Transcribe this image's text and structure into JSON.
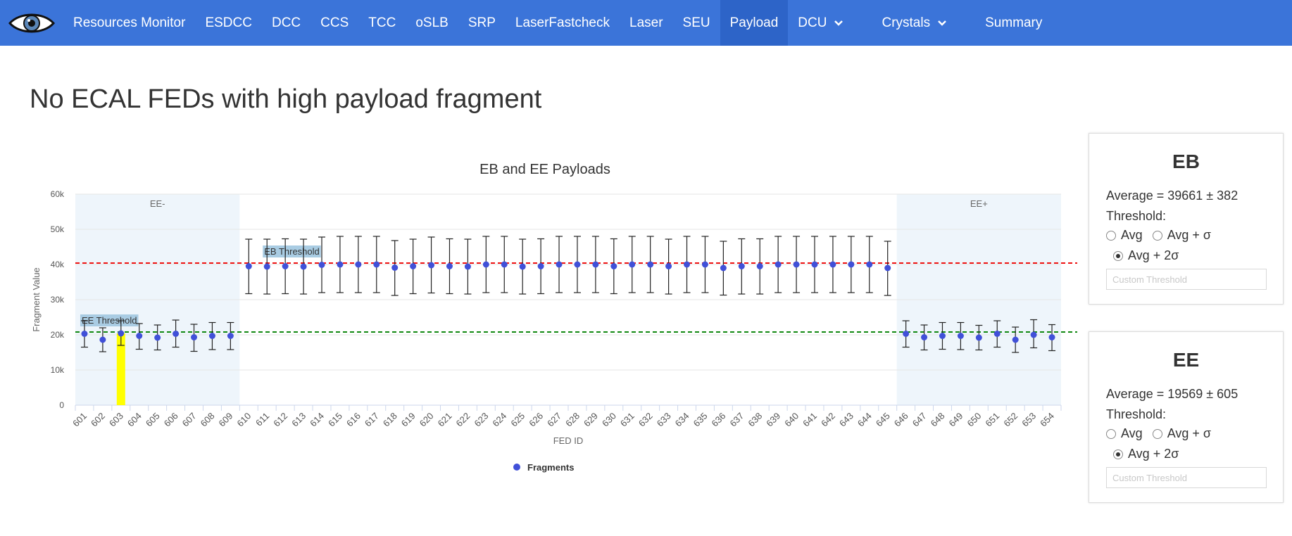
{
  "nav": {
    "items": [
      {
        "label": "Resources Monitor",
        "active": false,
        "dropdown": false
      },
      {
        "label": "ESDCC",
        "active": false,
        "dropdown": false
      },
      {
        "label": "DCC",
        "active": false,
        "dropdown": false
      },
      {
        "label": "CCS",
        "active": false,
        "dropdown": false
      },
      {
        "label": "TCC",
        "active": false,
        "dropdown": false
      },
      {
        "label": "oSLB",
        "active": false,
        "dropdown": false
      },
      {
        "label": "SRP",
        "active": false,
        "dropdown": false
      },
      {
        "label": "LaserFastcheck",
        "active": false,
        "dropdown": false
      },
      {
        "label": "Laser",
        "active": false,
        "dropdown": false
      },
      {
        "label": "SEU",
        "active": false,
        "dropdown": false
      },
      {
        "label": "Payload",
        "active": true,
        "dropdown": false
      },
      {
        "label": "DCU",
        "active": false,
        "dropdown": true
      },
      {
        "label": "Crystals",
        "active": false,
        "dropdown": true
      },
      {
        "label": "Summary",
        "active": false,
        "dropdown": false
      }
    ],
    "logo_icon": "eye-icon",
    "bar_color": "#3b74d9",
    "active_color": "#2d64c8"
  },
  "heading": "No ECAL FEDs with high payload fragment",
  "panels": {
    "eb": {
      "title": "EB",
      "average": "Average = 39661 ± 382",
      "threshold_label": "Threshold:",
      "options": [
        "Avg",
        "Avg + σ",
        "Avg + 2σ"
      ],
      "selected": "Avg + 2σ",
      "custom_placeholder": "Custom Threshold"
    },
    "ee": {
      "title": "EE",
      "average": "Average = 19569 ± 605",
      "threshold_label": "Threshold:",
      "options": [
        "Avg",
        "Avg + σ",
        "Avg + 2σ"
      ],
      "selected": "Avg + 2σ",
      "custom_placeholder": "Custom Threshold"
    }
  },
  "chart_data": {
    "type": "scatter",
    "title": "EB and EE Payloads",
    "xlabel": "FED ID",
    "ylabel": "Fragment Value",
    "ylim": [
      0,
      60000
    ],
    "yticks": [
      "0",
      "10k",
      "20k",
      "30k",
      "40k",
      "50k",
      "60k"
    ],
    "series": [
      {
        "name": "Fragments",
        "color": "#4050d8",
        "x": [
          "601",
          "602",
          "603",
          "604",
          "605",
          "606",
          "607",
          "608",
          "609",
          "610",
          "611",
          "612",
          "613",
          "614",
          "615",
          "616",
          "617",
          "618",
          "619",
          "620",
          "621",
          "622",
          "623",
          "624",
          "625",
          "626",
          "627",
          "628",
          "629",
          "630",
          "631",
          "632",
          "633",
          "634",
          "635",
          "636",
          "637",
          "638",
          "639",
          "640",
          "641",
          "642",
          "643",
          "644",
          "645",
          "646",
          "647",
          "648",
          "649",
          "650",
          "651",
          "652",
          "653",
          "654"
        ],
        "values": [
          20300,
          18600,
          20400,
          19700,
          19200,
          20300,
          19300,
          19700,
          19700,
          39500,
          39400,
          39500,
          39400,
          39900,
          40000,
          40000,
          40000,
          39100,
          39500,
          39800,
          39500,
          39400,
          40000,
          40000,
          39400,
          39500,
          40000,
          40000,
          40000,
          39500,
          40000,
          40000,
          39500,
          40000,
          40000,
          39000,
          39500,
          39500,
          40000,
          40000,
          40000,
          40000,
          40000,
          40000,
          39000,
          20300,
          19300,
          19700,
          19700,
          19200,
          20300,
          18600,
          20000,
          19300
        ],
        "error_low": [
          16500,
          15200,
          17000,
          15900,
          15700,
          16500,
          15300,
          15800,
          15800,
          31700,
          31600,
          31700,
          31600,
          32000,
          32000,
          32000,
          32000,
          31200,
          31700,
          31900,
          31700,
          31600,
          32000,
          32000,
          31600,
          31700,
          32000,
          32000,
          32000,
          31700,
          32000,
          32000,
          31600,
          32000,
          32000,
          31300,
          31600,
          31600,
          32000,
          32000,
          32000,
          32000,
          32000,
          32000,
          31200,
          16500,
          15700,
          15900,
          15800,
          15700,
          16500,
          15000,
          16300,
          15500
        ],
        "error_high": [
          24000,
          22000,
          24000,
          23200,
          22800,
          24200,
          23000,
          23500,
          23500,
          47200,
          47200,
          47300,
          47200,
          47800,
          48000,
          48000,
          48000,
          46800,
          47200,
          47800,
          47300,
          47200,
          48000,
          48000,
          47200,
          47300,
          48000,
          48000,
          48000,
          47300,
          48000,
          48000,
          47200,
          48000,
          48000,
          46600,
          47300,
          47300,
          48000,
          48000,
          48000,
          48000,
          48000,
          48000,
          46600,
          24000,
          22800,
          23500,
          23500,
          22700,
          24000,
          22200,
          24300,
          22900
        ]
      }
    ],
    "highlight": {
      "x": "603",
      "value": 20400,
      "color": "#ffff00"
    },
    "regions": [
      {
        "label": "EE-",
        "from": "601",
        "to": "609",
        "color": "#eef5fb"
      },
      {
        "label": "EE+",
        "from": "646",
        "to": "654",
        "color": "#eef5fb"
      }
    ],
    "thresholds": [
      {
        "label": "EB Threshold",
        "value": 40400,
        "color": "#ee1111"
      },
      {
        "label": "EE Threshold",
        "value": 20800,
        "color": "#118811"
      }
    ],
    "legend": "bottom-center",
    "grid": true
  }
}
